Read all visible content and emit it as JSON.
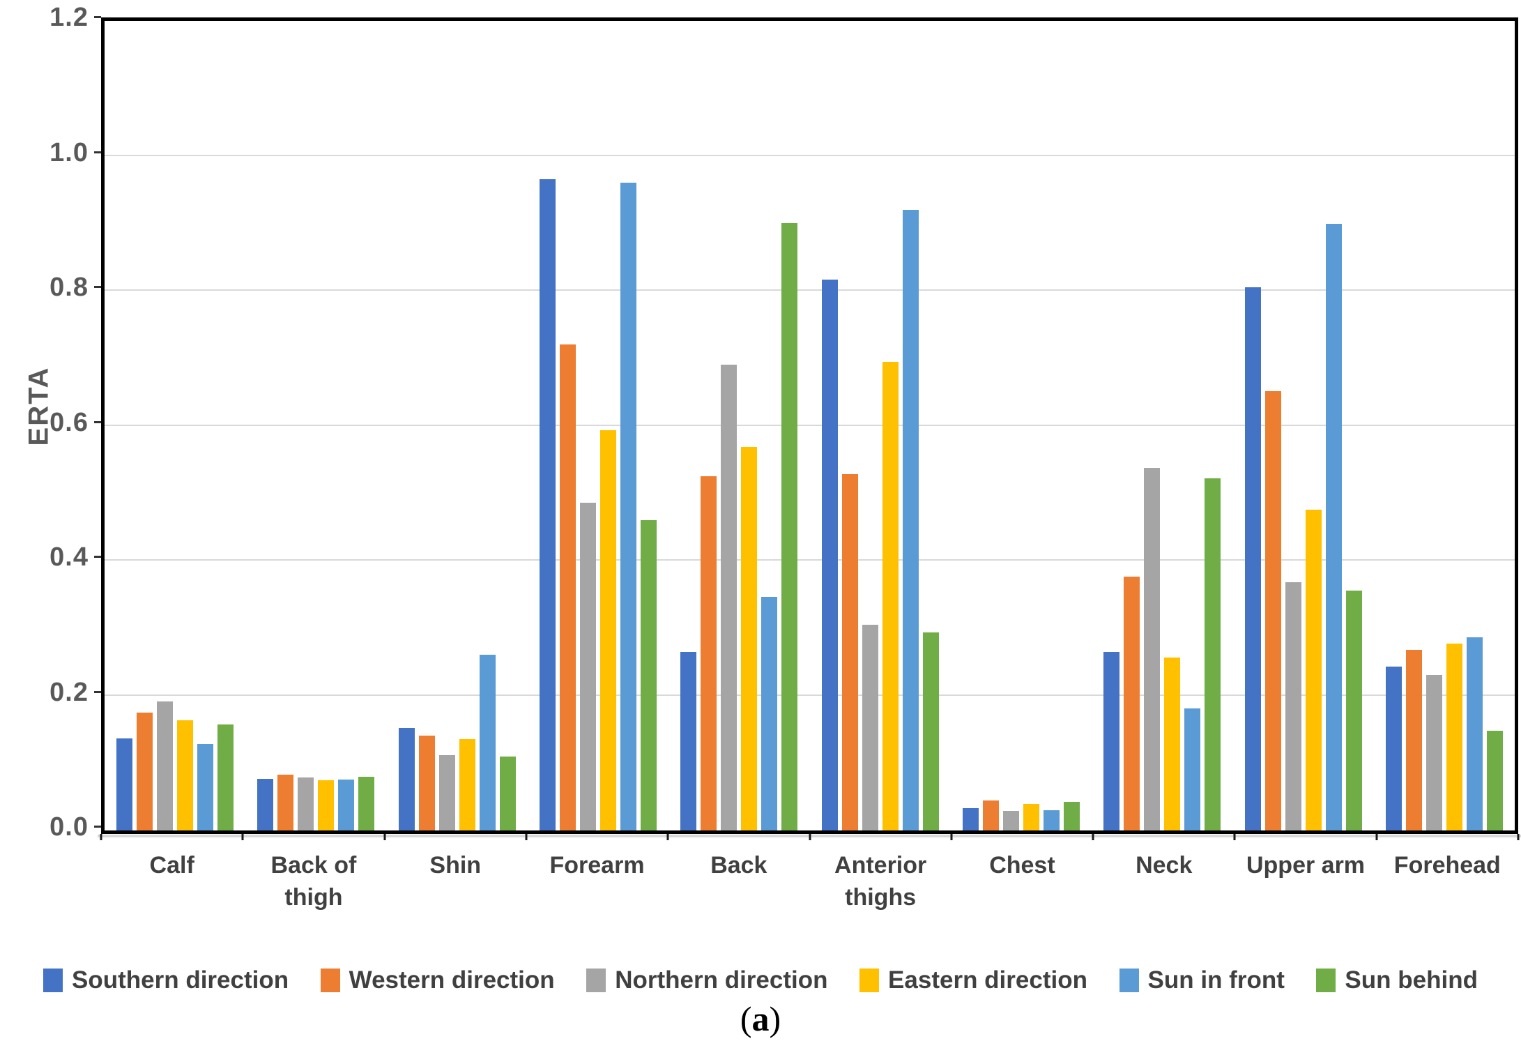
{
  "chart_data": {
    "type": "bar",
    "title": "",
    "xlabel": "",
    "ylabel": "ERTA",
    "ylim": [
      0,
      1.2
    ],
    "ytick_step": 0.2,
    "ytick_labels": [
      "0.0",
      "0.2",
      "0.4",
      "0.6",
      "0.8",
      "1.0",
      "1.2"
    ],
    "grid": true,
    "legend_position": "bottom",
    "categories": [
      {
        "label": "Calf",
        "lines": [
          "Calf"
        ]
      },
      {
        "label": "Back of thigh",
        "lines": [
          "Back of",
          "thigh"
        ]
      },
      {
        "label": "Shin",
        "lines": [
          "Shin"
        ]
      },
      {
        "label": "Forearm",
        "lines": [
          "Forearm"
        ]
      },
      {
        "label": "Back",
        "lines": [
          "Back"
        ]
      },
      {
        "label": "Anterior thighs",
        "lines": [
          "Anterior",
          "thighs"
        ]
      },
      {
        "label": "Chest",
        "lines": [
          "Chest"
        ]
      },
      {
        "label": "Neck",
        "lines": [
          "Neck"
        ]
      },
      {
        "label": "Upper arm",
        "lines": [
          "Upper arm"
        ]
      },
      {
        "label": "Forehead",
        "lines": [
          "Forehead"
        ]
      }
    ],
    "series": [
      {
        "name": "Southern direction",
        "color": "#4472C4",
        "values": [
          0.136,
          0.076,
          0.152,
          0.965,
          0.265,
          0.817,
          0.033,
          0.265,
          0.805,
          0.243
        ]
      },
      {
        "name": "Western direction",
        "color": "#ED7D31",
        "values": [
          0.175,
          0.083,
          0.141,
          0.72,
          0.525,
          0.528,
          0.044,
          0.376,
          0.651,
          0.268
        ]
      },
      {
        "name": "Northern direction",
        "color": "#A5A5A5",
        "values": [
          0.191,
          0.079,
          0.112,
          0.486,
          0.69,
          0.305,
          0.029,
          0.538,
          0.368,
          0.23
        ]
      },
      {
        "name": "Eastern direction",
        "color": "#FFC000",
        "values": [
          0.163,
          0.074,
          0.135,
          0.593,
          0.568,
          0.695,
          0.039,
          0.256,
          0.475,
          0.277
        ]
      },
      {
        "name": "Sun in front",
        "color": "#5B9BD5",
        "values": [
          0.128,
          0.075,
          0.26,
          0.96,
          0.346,
          0.92,
          0.03,
          0.181,
          0.899,
          0.286
        ]
      },
      {
        "name": "Sun behind",
        "color": "#70AD47",
        "values": [
          0.157,
          0.08,
          0.11,
          0.46,
          0.9,
          0.294,
          0.042,
          0.522,
          0.356,
          0.148
        ]
      }
    ]
  },
  "caption": {
    "open": "(",
    "letter": "a",
    "close": ")"
  },
  "styles": {
    "background": "#ffffff",
    "axis_color": "#000000",
    "grid_color": "#d9d9d9",
    "tick_label_color": "#595959",
    "category_label_color": "#404040",
    "legend_label_color": "#404040"
  }
}
